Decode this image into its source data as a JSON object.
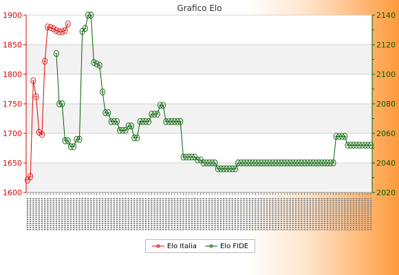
{
  "chart_data": {
    "type": "line",
    "title": "Grafico Elo",
    "y_left": {
      "ticks": [
        "1600",
        "1650",
        "1700",
        "1750",
        "1800",
        "1850",
        "1900"
      ],
      "range": [
        1600,
        1900
      ],
      "color": "#e00000"
    },
    "y_right": {
      "ticks": [
        "2020",
        "2040",
        "2060",
        "2080",
        "2100",
        "2120",
        "2140"
      ],
      "range": [
        2020,
        2140
      ],
      "color": "#006000"
    },
    "grid": true,
    "legend_position": "bottom",
    "x_count": 120,
    "series": [
      {
        "name": "Elo Italia",
        "axis": "left",
        "color": "#e00000",
        "points": [
          [
            0,
            1621
          ],
          [
            1,
            1627
          ],
          [
            2,
            1789
          ],
          [
            3,
            1762
          ],
          [
            4,
            1702
          ],
          [
            5,
            1698
          ],
          [
            6,
            1822
          ],
          [
            7,
            1880
          ],
          [
            8,
            1879
          ],
          [
            9,
            1877
          ],
          [
            10,
            1874
          ],
          [
            11,
            1872
          ],
          [
            12,
            1872
          ],
          [
            13,
            1874
          ],
          [
            14,
            1885
          ]
        ]
      },
      {
        "name": "Elo FIDE",
        "axis": "right",
        "color": "#006000",
        "points": [
          [
            10,
            2114
          ],
          [
            11,
            2080
          ],
          [
            12,
            2080
          ],
          [
            13,
            2055
          ],
          [
            14,
            2055
          ],
          [
            15,
            2051
          ],
          [
            16,
            2051
          ],
          [
            17,
            2056
          ],
          [
            18,
            2056
          ],
          [
            19,
            2129
          ],
          [
            20,
            2131
          ],
          [
            21,
            2140
          ],
          [
            22,
            2140
          ],
          [
            23,
            2108
          ],
          [
            24,
            2107
          ],
          [
            25,
            2106
          ],
          [
            26,
            2088
          ],
          [
            27,
            2074
          ],
          [
            28,
            2074
          ],
          [
            29,
            2068
          ],
          [
            30,
            2068
          ],
          [
            31,
            2068
          ],
          [
            32,
            2062
          ],
          [
            33,
            2062
          ],
          [
            34,
            2062
          ],
          [
            35,
            2065
          ],
          [
            36,
            2065
          ],
          [
            37,
            2057
          ],
          [
            38,
            2057
          ],
          [
            39,
            2068
          ],
          [
            40,
            2068
          ],
          [
            41,
            2068
          ],
          [
            42,
            2068
          ],
          [
            43,
            2073
          ],
          [
            44,
            2073
          ],
          [
            45,
            2073
          ],
          [
            46,
            2079
          ],
          [
            47,
            2079
          ],
          [
            48,
            2068
          ],
          [
            49,
            2068
          ],
          [
            50,
            2068
          ],
          [
            51,
            2068
          ],
          [
            52,
            2068
          ],
          [
            53,
            2068
          ],
          [
            54,
            2044
          ],
          [
            55,
            2044
          ],
          [
            56,
            2044
          ],
          [
            57,
            2044
          ],
          [
            58,
            2044
          ],
          [
            59,
            2042
          ],
          [
            60,
            2042
          ],
          [
            61,
            2040
          ],
          [
            62,
            2040
          ],
          [
            63,
            2040
          ],
          [
            64,
            2040
          ],
          [
            65,
            2040
          ],
          [
            66,
            2036
          ],
          [
            67,
            2036
          ],
          [
            68,
            2036
          ],
          [
            69,
            2036
          ],
          [
            70,
            2036
          ],
          [
            71,
            2036
          ],
          [
            72,
            2036
          ],
          [
            73,
            2040
          ],
          [
            74,
            2040
          ],
          [
            75,
            2040
          ],
          [
            76,
            2040
          ],
          [
            77,
            2040
          ],
          [
            78,
            2040
          ],
          [
            79,
            2040
          ],
          [
            80,
            2040
          ],
          [
            81,
            2040
          ],
          [
            82,
            2040
          ],
          [
            83,
            2040
          ],
          [
            84,
            2040
          ],
          [
            85,
            2040
          ],
          [
            86,
            2040
          ],
          [
            87,
            2040
          ],
          [
            88,
            2040
          ],
          [
            89,
            2040
          ],
          [
            90,
            2040
          ],
          [
            91,
            2040
          ],
          [
            92,
            2040
          ],
          [
            93,
            2040
          ],
          [
            94,
            2040
          ],
          [
            95,
            2040
          ],
          [
            96,
            2040
          ],
          [
            97,
            2040
          ],
          [
            98,
            2040
          ],
          [
            99,
            2040
          ],
          [
            100,
            2040
          ],
          [
            101,
            2040
          ],
          [
            102,
            2040
          ],
          [
            103,
            2040
          ],
          [
            104,
            2040
          ],
          [
            105,
            2040
          ],
          [
            106,
            2040
          ],
          [
            107,
            2058
          ],
          [
            108,
            2058
          ],
          [
            109,
            2058
          ],
          [
            110,
            2058
          ],
          [
            111,
            2052
          ],
          [
            112,
            2052
          ],
          [
            113,
            2052
          ],
          [
            114,
            2052
          ],
          [
            115,
            2052
          ],
          [
            116,
            2052
          ],
          [
            117,
            2052
          ],
          [
            118,
            2052
          ],
          [
            119,
            2052
          ]
        ]
      }
    ]
  }
}
